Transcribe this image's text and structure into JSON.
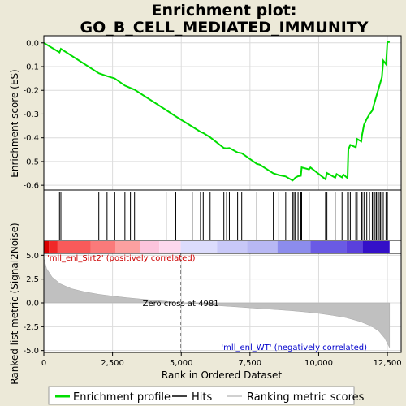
{
  "chart_data": {
    "type": "line",
    "title": "Enrichment plot:",
    "subtitle": "GO_B_CELL_MEDIATED_IMMUNITY",
    "es_panel": {
      "ylabel": "Enrichment score (ES)",
      "ylim": [
        -0.62,
        0.03
      ],
      "yticks": [
        0.0,
        -0.1,
        -0.2,
        -0.3,
        -0.4,
        -0.5,
        -0.6
      ],
      "ytick_labels": [
        "0.0",
        "-0.1",
        "-0.2",
        "-0.3",
        "-0.4",
        "-0.5",
        "-0.6"
      ],
      "points": [
        [
          0,
          0.0
        ],
        [
          570,
          -0.04
        ],
        [
          620,
          -0.025
        ],
        [
          2000,
          -0.128
        ],
        [
          2300,
          -0.14
        ],
        [
          2580,
          -0.15
        ],
        [
          2950,
          -0.18
        ],
        [
          3150,
          -0.19
        ],
        [
          3300,
          -0.197
        ],
        [
          4450,
          -0.283
        ],
        [
          4800,
          -0.31
        ],
        [
          5400,
          -0.353
        ],
        [
          5700,
          -0.375
        ],
        [
          5800,
          -0.38
        ],
        [
          6050,
          -0.398
        ],
        [
          6550,
          -0.443
        ],
        [
          6650,
          -0.445
        ],
        [
          6750,
          -0.443
        ],
        [
          7050,
          -0.462
        ],
        [
          7200,
          -0.465
        ],
        [
          7750,
          -0.51
        ],
        [
          7850,
          -0.513
        ],
        [
          8350,
          -0.55
        ],
        [
          8550,
          -0.557
        ],
        [
          8800,
          -0.563
        ],
        [
          9050,
          -0.58
        ],
        [
          9100,
          -0.575
        ],
        [
          9150,
          -0.568
        ],
        [
          9250,
          -0.562
        ],
        [
          9350,
          -0.56
        ],
        [
          9380,
          -0.525
        ],
        [
          9650,
          -0.533
        ],
        [
          9700,
          -0.525
        ],
        [
          10250,
          -0.575
        ],
        [
          10300,
          -0.548
        ],
        [
          10600,
          -0.568
        ],
        [
          10650,
          -0.553
        ],
        [
          10850,
          -0.567
        ],
        [
          10900,
          -0.555
        ],
        [
          11050,
          -0.57
        ],
        [
          11080,
          -0.45
        ],
        [
          11150,
          -0.43
        ],
        [
          11350,
          -0.44
        ],
        [
          11400,
          -0.405
        ],
        [
          11550,
          -0.415
        ],
        [
          11580,
          -0.388
        ],
        [
          11650,
          -0.345
        ],
        [
          11750,
          -0.32
        ],
        [
          11850,
          -0.3
        ],
        [
          11950,
          -0.285
        ],
        [
          12050,
          -0.245
        ],
        [
          12100,
          -0.225
        ],
        [
          12150,
          -0.205
        ],
        [
          12250,
          -0.165
        ],
        [
          12300,
          -0.145
        ],
        [
          12350,
          -0.075
        ],
        [
          12450,
          -0.09
        ],
        [
          12500,
          0.005
        ],
        [
          12580,
          0.002
        ]
      ]
    },
    "hits": [
      570,
      620,
      2000,
      2300,
      2580,
      2950,
      3150,
      3300,
      4450,
      4800,
      5400,
      5700,
      5800,
      6050,
      6550,
      6650,
      6750,
      7050,
      7200,
      7750,
      8350,
      8550,
      8800,
      9050,
      9100,
      9150,
      9250,
      9350,
      9380,
      9650,
      10250,
      10300,
      10600,
      10850,
      11050,
      11080,
      11150,
      11350,
      11400,
      11550,
      11580,
      11650,
      11750,
      11850,
      11950,
      12000,
      12050,
      12100,
      12150,
      12200,
      12250,
      12300,
      12350,
      12450,
      12500
    ],
    "metric_panel": {
      "ylabel": "Ranked list metric (Signal2Noise)",
      "ylim": [
        -5.2,
        5.2
      ],
      "yticks": [
        5.0,
        2.5,
        0.0,
        -2.5,
        -5.0
      ],
      "ytick_labels": [
        "5.0",
        "2.5",
        "0.0",
        "-2.5",
        "-5.0"
      ],
      "profile": [
        [
          0,
          4.7
        ],
        [
          100,
          3.6
        ],
        [
          300,
          2.7
        ],
        [
          600,
          2.0
        ],
        [
          1000,
          1.5
        ],
        [
          1500,
          1.15
        ],
        [
          2000,
          0.9
        ],
        [
          2500,
          0.72
        ],
        [
          3000,
          0.55
        ],
        [
          3500,
          0.42
        ],
        [
          4000,
          0.28
        ],
        [
          4500,
          0.15
        ],
        [
          4981,
          0.0
        ],
        [
          5500,
          -0.12
        ],
        [
          6000,
          -0.22
        ],
        [
          6500,
          -0.32
        ],
        [
          7000,
          -0.42
        ],
        [
          7500,
          -0.52
        ],
        [
          8000,
          -0.62
        ],
        [
          8500,
          -0.72
        ],
        [
          9000,
          -0.82
        ],
        [
          9500,
          -0.95
        ],
        [
          10000,
          -1.1
        ],
        [
          10500,
          -1.3
        ],
        [
          11000,
          -1.55
        ],
        [
          11500,
          -1.95
        ],
        [
          11800,
          -2.3
        ],
        [
          12000,
          -2.6
        ],
        [
          12200,
          -3.0
        ],
        [
          12400,
          -3.7
        ],
        [
          12580,
          -4.7
        ]
      ],
      "zero_cross_label": "Zero cross at 4981",
      "zero_cross": 4981,
      "pos_label": "'mll_enl_Sirt2' (positively correlated)",
      "neg_label": "'mll_enl_WT' (negatively correlated)"
    },
    "xlabel": "Rank in Ordered Dataset",
    "xlim": [
      0,
      13000
    ],
    "xticks": [
      0,
      2500,
      5000,
      7500,
      10000,
      12500
    ],
    "xtick_labels": [
      "0",
      "2,500",
      "5,000",
      "7,500",
      "10,000",
      "12,500"
    ],
    "heat_bar": [
      {
        "from": 0,
        "to": 180,
        "color": "#d90000"
      },
      {
        "from": 180,
        "to": 500,
        "color": "#f02828"
      },
      {
        "from": 500,
        "to": 1700,
        "color": "#f85a5a"
      },
      {
        "from": 1700,
        "to": 2600,
        "color": "#fa7a7a"
      },
      {
        "from": 2600,
        "to": 3500,
        "color": "#fba0a0"
      },
      {
        "from": 3500,
        "to": 4200,
        "color": "#fcc4dc"
      },
      {
        "from": 4200,
        "to": 4981,
        "color": "#fdd8ee"
      },
      {
        "from": 4981,
        "to": 6300,
        "color": "#dcdcfc"
      },
      {
        "from": 6300,
        "to": 7400,
        "color": "#c8c8f8"
      },
      {
        "from": 7400,
        "to": 8500,
        "color": "#b8b8f4"
      },
      {
        "from": 8500,
        "to": 9700,
        "color": "#8c8cec"
      },
      {
        "from": 9700,
        "to": 11000,
        "color": "#6a5ae4"
      },
      {
        "from": 11000,
        "to": 11600,
        "color": "#5a40dc"
      },
      {
        "from": 11600,
        "to": 12580,
        "color": "#3410c8"
      }
    ],
    "legend": [
      {
        "label": "Enrichment profile",
        "color": "#00dd00"
      },
      {
        "label": "Hits",
        "color": "#000000"
      },
      {
        "label": "Ranking metric scores",
        "color": "#c0c0c0"
      }
    ]
  }
}
